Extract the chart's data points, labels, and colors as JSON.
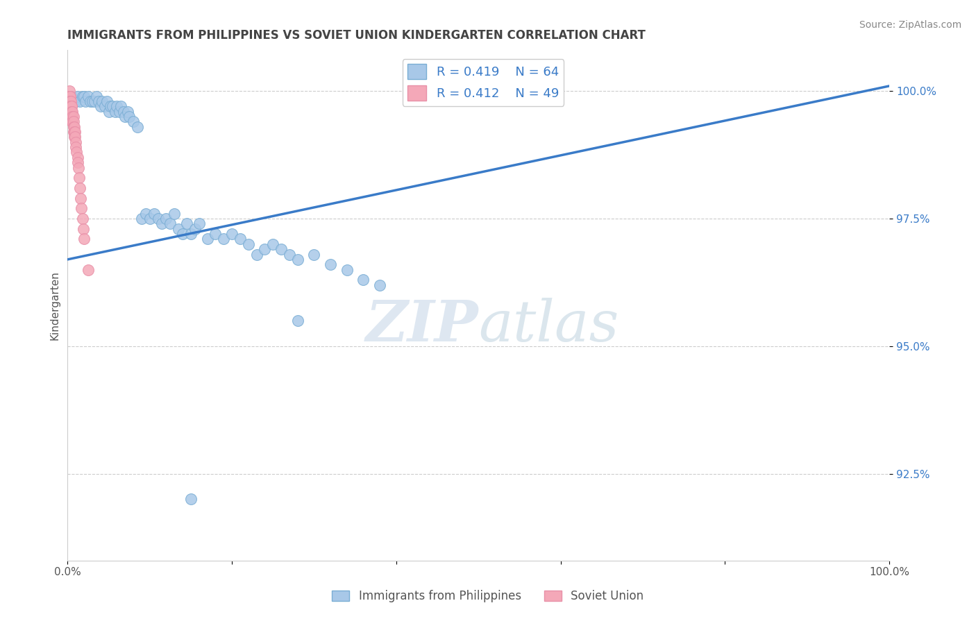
{
  "title": "IMMIGRANTS FROM PHILIPPINES VS SOVIET UNION KINDERGARTEN CORRELATION CHART",
  "source": "Source: ZipAtlas.com",
  "ylabel": "Kindergarten",
  "legend_label_1": "Immigrants from Philippines",
  "legend_label_2": "Soviet Union",
  "R1": "0.419",
  "N1": "64",
  "R2": "0.412",
  "N2": "49",
  "xlim": [
    0.0,
    1.0
  ],
  "ylim": [
    0.908,
    1.008
  ],
  "xticks": [
    0.0,
    0.2,
    0.4,
    0.6,
    0.8,
    1.0
  ],
  "ytick_labels": [
    "92.5%",
    "95.0%",
    "97.5%",
    "100.0%"
  ],
  "yticks": [
    0.925,
    0.95,
    0.975,
    1.0
  ],
  "color_philippines": "#a8c8e8",
  "color_soviet": "#f4a8b8",
  "line_color": "#3a7bc8",
  "title_color": "#444444",
  "watermark_zip": "ZIP",
  "watermark_atlas": "atlas",
  "philippines_x": [
    0.005,
    0.01,
    0.012,
    0.015,
    0.018,
    0.02,
    0.022,
    0.025,
    0.028,
    0.03,
    0.033,
    0.035,
    0.038,
    0.04,
    0.042,
    0.045,
    0.048,
    0.05,
    0.052,
    0.055,
    0.058,
    0.06,
    0.063,
    0.065,
    0.068,
    0.07,
    0.073,
    0.075,
    0.08,
    0.085,
    0.09,
    0.095,
    0.1,
    0.105,
    0.11,
    0.115,
    0.12,
    0.125,
    0.13,
    0.135,
    0.14,
    0.145,
    0.15,
    0.155,
    0.16,
    0.17,
    0.18,
    0.19,
    0.2,
    0.21,
    0.22,
    0.23,
    0.24,
    0.25,
    0.26,
    0.27,
    0.28,
    0.3,
    0.32,
    0.34,
    0.36,
    0.38,
    0.28,
    0.15
  ],
  "philippines_y": [
    0.999,
    0.998,
    0.999,
    0.998,
    0.999,
    0.999,
    0.998,
    0.999,
    0.998,
    0.998,
    0.998,
    0.999,
    0.998,
    0.997,
    0.998,
    0.997,
    0.998,
    0.996,
    0.997,
    0.997,
    0.996,
    0.997,
    0.996,
    0.997,
    0.996,
    0.995,
    0.996,
    0.995,
    0.994,
    0.993,
    0.975,
    0.976,
    0.975,
    0.976,
    0.975,
    0.974,
    0.975,
    0.974,
    0.976,
    0.973,
    0.972,
    0.974,
    0.972,
    0.973,
    0.974,
    0.971,
    0.972,
    0.971,
    0.972,
    0.971,
    0.97,
    0.968,
    0.969,
    0.97,
    0.969,
    0.968,
    0.967,
    0.968,
    0.966,
    0.965,
    0.963,
    0.962,
    0.955,
    0.92
  ],
  "soviet_x": [
    0.002,
    0.002,
    0.002,
    0.002,
    0.003,
    0.003,
    0.003,
    0.003,
    0.003,
    0.003,
    0.003,
    0.003,
    0.004,
    0.004,
    0.004,
    0.004,
    0.004,
    0.004,
    0.005,
    0.005,
    0.005,
    0.005,
    0.005,
    0.006,
    0.006,
    0.006,
    0.007,
    0.007,
    0.007,
    0.007,
    0.008,
    0.008,
    0.008,
    0.009,
    0.009,
    0.01,
    0.01,
    0.011,
    0.012,
    0.012,
    0.013,
    0.014,
    0.015,
    0.016,
    0.017,
    0.018,
    0.019,
    0.02,
    0.025
  ],
  "soviet_y": [
    1.0,
    0.999,
    0.999,
    0.998,
    0.999,
    0.999,
    0.998,
    0.998,
    0.997,
    0.997,
    0.996,
    0.996,
    0.998,
    0.997,
    0.997,
    0.996,
    0.996,
    0.995,
    0.997,
    0.997,
    0.996,
    0.995,
    0.994,
    0.996,
    0.995,
    0.994,
    0.995,
    0.994,
    0.993,
    0.992,
    0.993,
    0.992,
    0.991,
    0.992,
    0.991,
    0.99,
    0.989,
    0.988,
    0.987,
    0.986,
    0.985,
    0.983,
    0.981,
    0.979,
    0.977,
    0.975,
    0.973,
    0.971,
    0.965
  ],
  "line_x": [
    0.0,
    1.0
  ],
  "line_y_start": 0.967,
  "line_y_end": 1.001,
  "background_color": "#ffffff",
  "grid_color": "#cccccc"
}
